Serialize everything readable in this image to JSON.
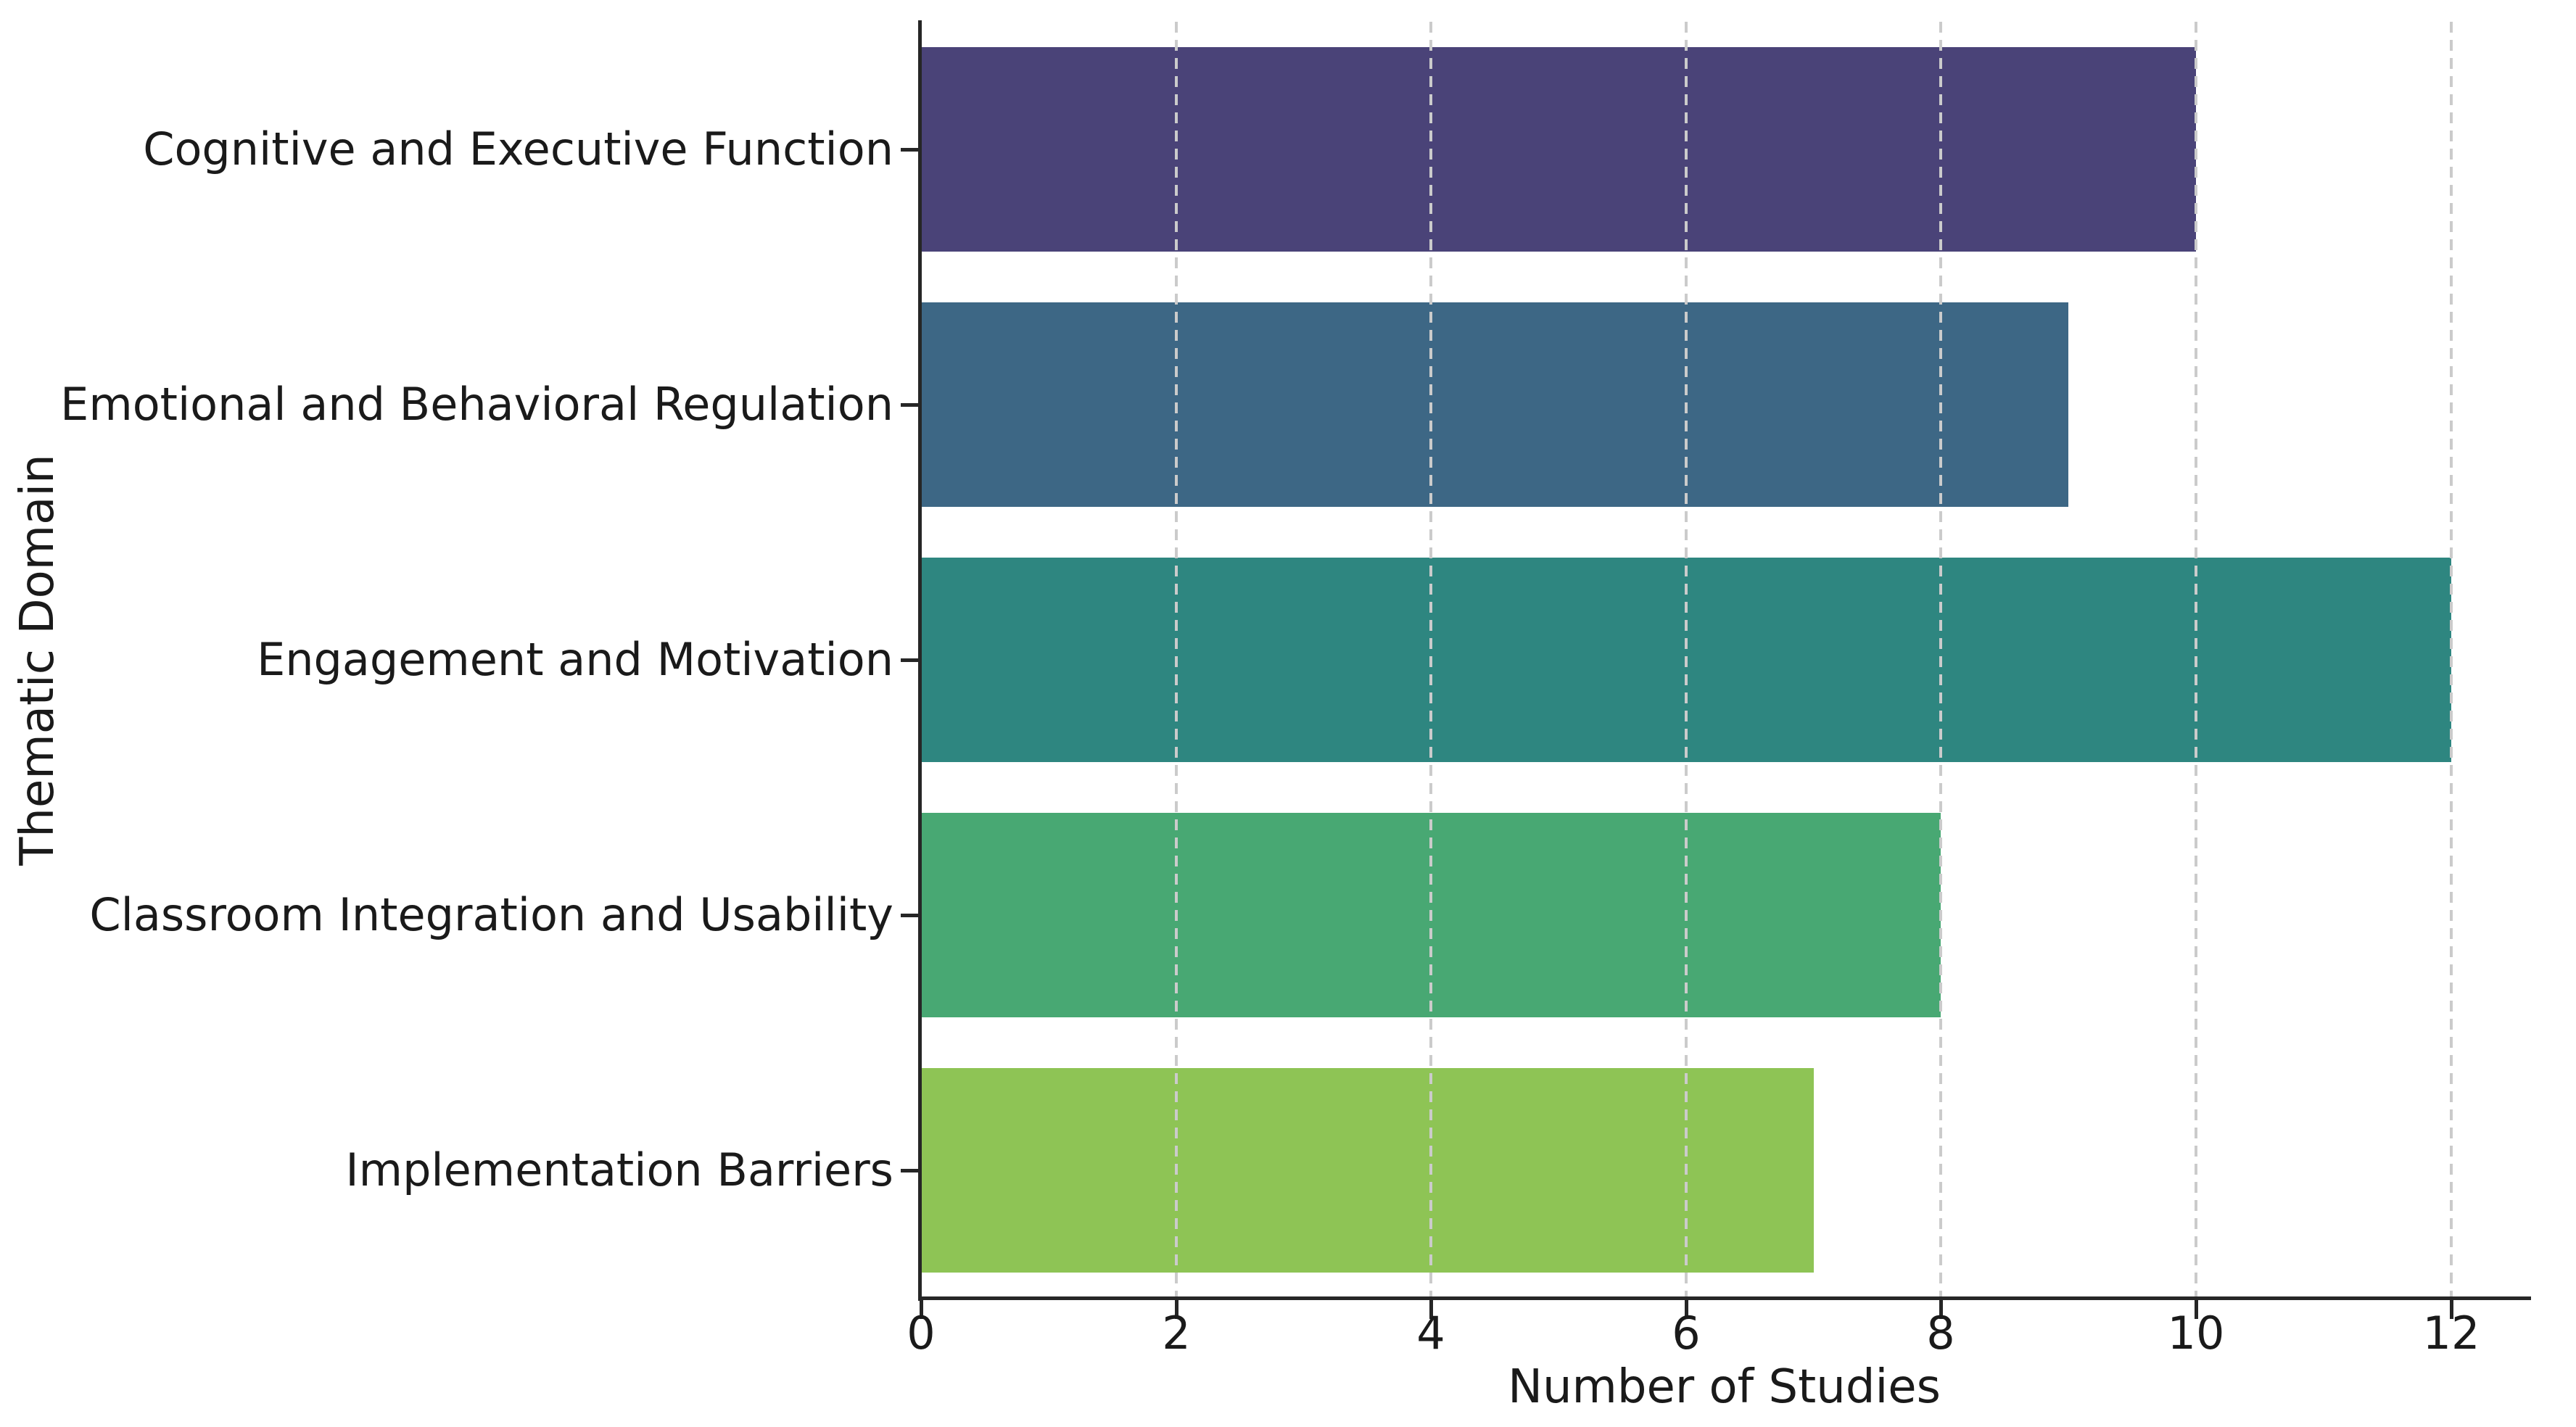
{
  "chart_data": {
    "type": "bar",
    "orientation": "horizontal",
    "title": "",
    "xlabel": "Number of Studies",
    "ylabel": "Thematic Domain",
    "categories": [
      "Cognitive and Executive Function",
      "Emotional and Behavioral Regulation",
      "Engagement and Motivation",
      "Classroom Integration and Usability",
      "Implementation Barriers"
    ],
    "values": [
      10,
      9,
      12,
      8,
      7
    ],
    "bar_colors": [
      "#4a4378",
      "#3d6785",
      "#2e8680",
      "#48a873",
      "#8ec455"
    ],
    "xticks": [
      0,
      2,
      4,
      6,
      8,
      10,
      12
    ],
    "xlim": [
      0,
      12.6
    ],
    "grid": {
      "axis": "x",
      "style": "dashed",
      "color": "#cbcbcb",
      "drawn_above_bars": true
    },
    "legend": "none",
    "spine_color": "#262626",
    "text_color": "#1a1a1a",
    "background_color": "#ffffff"
  }
}
